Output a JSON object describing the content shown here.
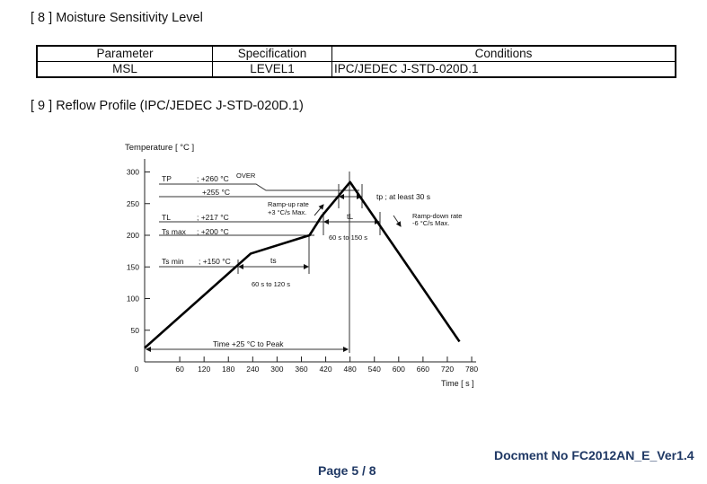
{
  "section8": {
    "title": "[ 8 ] Moisture Sensitivity Level"
  },
  "msl_table": {
    "headers": [
      "Parameter",
      "Specification",
      "Conditions"
    ],
    "rows": [
      [
        "MSL",
        "LEVEL1",
        "IPC/JEDEC J-STD-020D.1"
      ]
    ]
  },
  "section9": {
    "title": "[ 9 ] Reflow Profile (IPC/JEDEC J-STD-020D.1)"
  },
  "chart_data": {
    "type": "line",
    "ylabel": "Temperature [ °C ]",
    "xlabel": "Time [ s ]",
    "xticks": [
      0,
      60,
      120,
      180,
      240,
      300,
      360,
      420,
      480,
      540,
      600,
      660,
      720,
      780
    ],
    "yticks": [
      0,
      50,
      100,
      150,
      200,
      250,
      300
    ],
    "xlim": [
      0,
      780
    ],
    "ylim": [
      0,
      300
    ],
    "grid": false,
    "series": [
      {
        "x": [
          0,
          235,
          380,
          410,
          480,
          750
        ],
        "y": [
          22,
          171,
          200,
          230,
          284,
          32
        ]
      }
    ],
    "annotations": {
      "tp_label": "TP",
      "tp_value": "; +260 °C",
      "tp_over": "OVER",
      "t255": "+255 °C",
      "tl_label": "TL",
      "tl_value": "; +217 °C",
      "tsmax_label": "Ts max",
      "tsmax_value": "; +200 °C",
      "tsmin_label": "Ts min",
      "tsmin_value": "; +150 °C",
      "ts": "ts",
      "ts_range": "60 s  to  120 s",
      "tL": "tL",
      "tL_range": "60 s  to  150 s",
      "tp_time": "tp ; at least 30 s",
      "rampup1": "Ramp-up rate",
      "rampup2": "+3 °C/s Max.",
      "rampdown1": "Ramp-down rate",
      "rampdown2": "-6 °C/s Max.",
      "time_to_peak": "Time +25 °C to Peak"
    }
  },
  "footer": {
    "doc_no": "Docment No FC2012AN_E_Ver1.4",
    "page": "Page 5 / 8"
  },
  "colors": {
    "footer": "#1f3864"
  }
}
